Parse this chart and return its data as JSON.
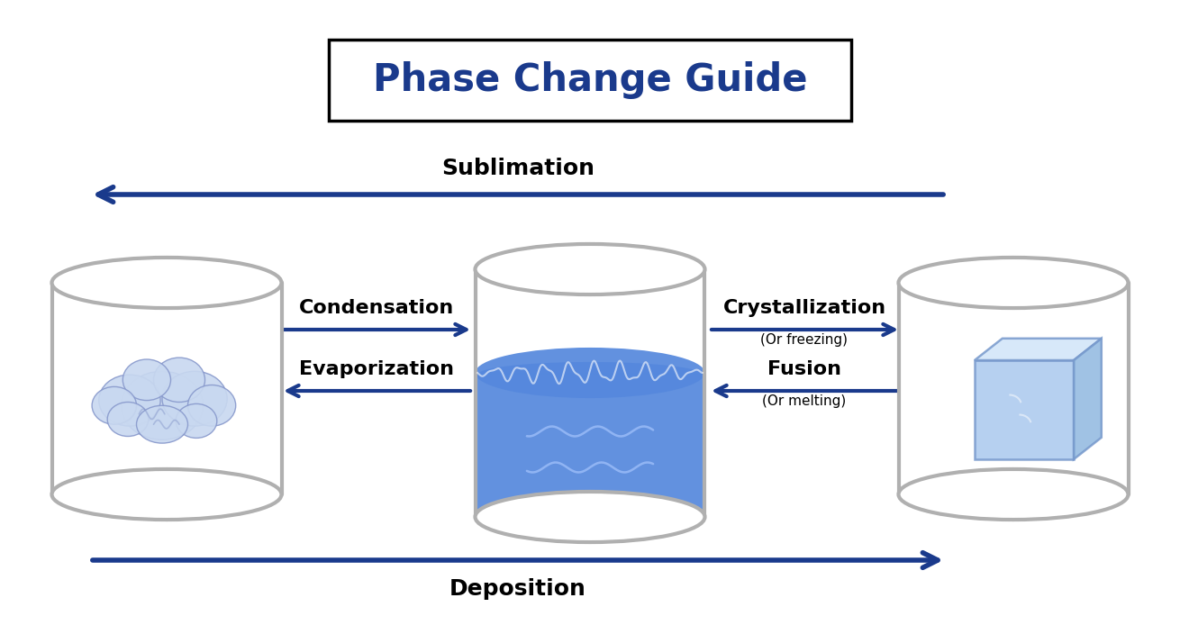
{
  "title": "Phase Change Guide",
  "title_color": "#1a3a8c",
  "title_fontsize": 30,
  "title_fontweight": "bold",
  "background_color": "#ffffff",
  "arrow_color": "#1a3a8c",
  "arrow_color_light": "#4477cc",
  "cylinder_edge_color": "#b0b0b0",
  "cylinder_edge_lw": 3.0,
  "water_color": "#5588dd",
  "water_fill_color": "#5588dd",
  "wave_highlight": "#7aaaee",
  "cloud_fill": "#c8d8f0",
  "cloud_edge": "#8899cc",
  "ice_fill": "#aac8ee",
  "ice_edge": "#7799cc",
  "sublimation_label": "Sublimation",
  "deposition_label": "Deposition",
  "condensation_label": "Condensation",
  "evaporation_label": "Evaporization",
  "crystallization_label": "Crystallization",
  "crystallization_sub": "(Or freezing)",
  "fusion_label": "Fusion",
  "fusion_sub": "(Or melting)",
  "label_fontsize": 16,
  "label_fontweight": "bold",
  "sublabel_fontsize": 11,
  "outer_arrow_lw": 4.0,
  "inner_arrow_lw": 3.0,
  "fig_width": 13.1,
  "fig_height": 7.04
}
